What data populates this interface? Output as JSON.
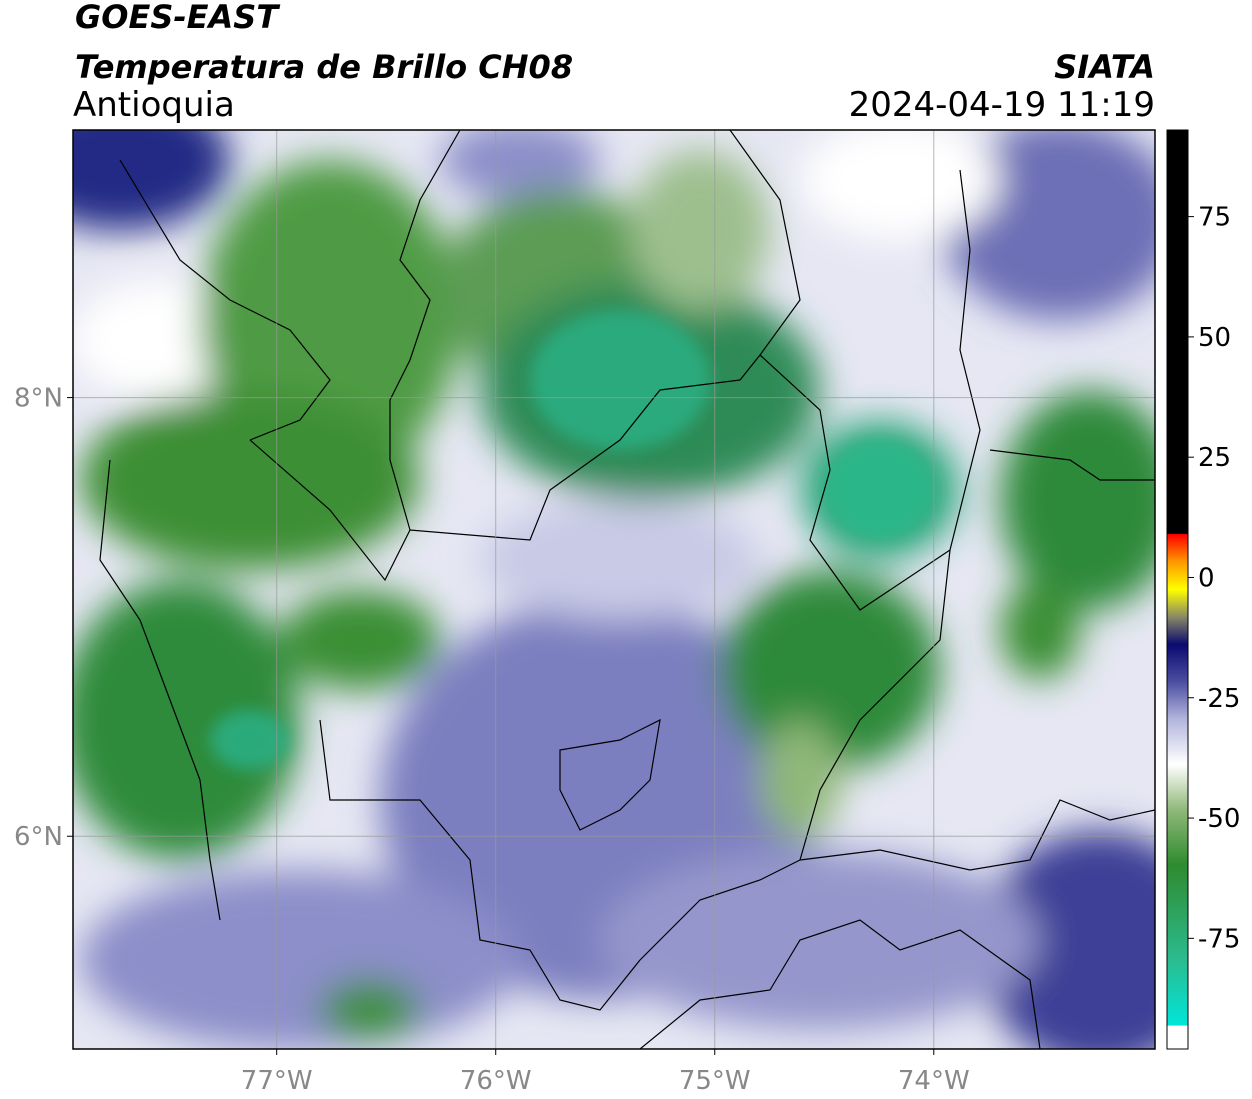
{
  "header": {
    "title": "GOES-EAST",
    "subtitle": "Temperatura de Brillo CH08",
    "region": "Antioquia",
    "source": "SIATA",
    "timestamp": "2024-04-19 11:19"
  },
  "map": {
    "xlim": [
      -77.93,
      -72.99
    ],
    "ylim": [
      5.03,
      9.22
    ],
    "xticks": [
      {
        "value": -77,
        "label": "77°W"
      },
      {
        "value": -76,
        "label": "76°W"
      },
      {
        "value": -75,
        "label": "75°W"
      },
      {
        "value": -74,
        "label": "74°W"
      }
    ],
    "yticks": [
      {
        "value": 8,
        "label": "8°N"
      },
      {
        "value": 6,
        "label": "6°N"
      }
    ],
    "grid": true
  },
  "colorbar": {
    "lim": [
      -98,
      93
    ],
    "ticks": [
      75,
      50,
      25,
      0,
      -25,
      -50,
      -75
    ]
  }
}
